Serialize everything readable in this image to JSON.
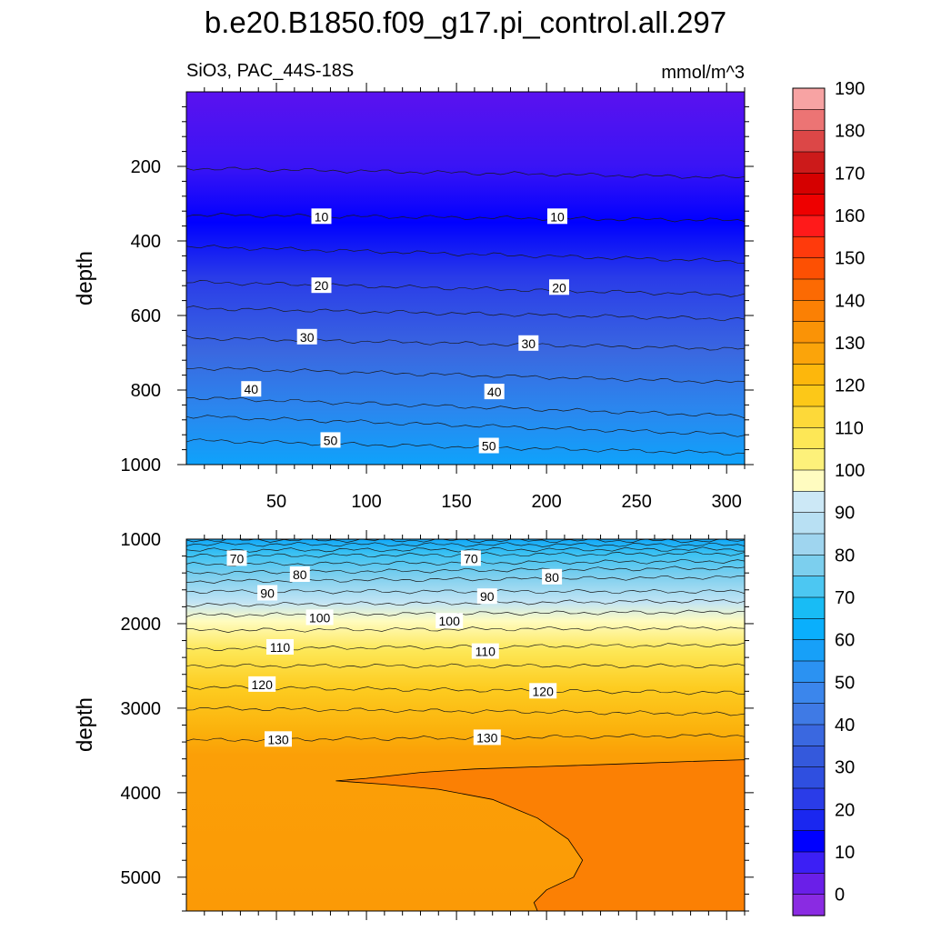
{
  "title": "b.e20.B1850.f09_g17.pi_control.all.297",
  "subtitle_left": "SiO3, PAC_44S-18S",
  "subtitle_right": "mmol/m^3",
  "chart_data": [
    {
      "type": "heatmap",
      "panel": "upper",
      "ylabel": "depth",
      "xlabel": "",
      "xlim": [
        0,
        310
      ],
      "ylim": [
        0,
        1000
      ],
      "y_inverted": true,
      "x_ticks": [
        50,
        100,
        150,
        200,
        250,
        300
      ],
      "y_ticks": [
        200,
        400,
        600,
        800,
        1000
      ],
      "contour_levels": [
        0,
        5,
        10,
        15,
        20,
        25,
        30,
        35,
        40,
        45,
        50
      ],
      "contour_depths_left": [
        205,
        330,
        415,
        510,
        580,
        660,
        740,
        820,
        870,
        935
      ],
      "contour_depths_right": [
        230,
        345,
        455,
        545,
        610,
        690,
        780,
        870,
        920,
        970
      ],
      "contour_labels": [
        {
          "text": "10",
          "x": 75,
          "y": 335
        },
        {
          "text": "10",
          "x": 206,
          "y": 335
        },
        {
          "text": "20",
          "x": 75,
          "y": 520
        },
        {
          "text": "20",
          "x": 207,
          "y": 525
        },
        {
          "text": "30",
          "x": 67,
          "y": 658
        },
        {
          "text": "30",
          "x": 190,
          "y": 675
        },
        {
          "text": "40",
          "x": 36,
          "y": 798
        },
        {
          "text": "40",
          "x": 171,
          "y": 805
        },
        {
          "text": "50",
          "x": 80,
          "y": 935
        },
        {
          "text": "50",
          "x": 168,
          "y": 950
        }
      ]
    },
    {
      "type": "heatmap",
      "panel": "lower",
      "ylabel": "depth",
      "xlabel": "",
      "xlim": [
        0,
        310
      ],
      "ylim": [
        1000,
        5400
      ],
      "y_inverted": true,
      "x_ticks": [
        50,
        100,
        150,
        200,
        250,
        300
      ],
      "y_ticks": [
        1000,
        2000,
        3000,
        4000,
        5000
      ],
      "contour_levels": [
        55,
        60,
        65,
        70,
        75,
        80,
        85,
        90,
        95,
        100,
        105,
        110,
        115,
        120,
        125,
        130
      ],
      "contour_depths_left": [
        1010,
        1060,
        1130,
        1200,
        1300,
        1400,
        1500,
        1620,
        1780,
        1900,
        2080,
        2300,
        2500,
        2750,
        3000,
        3380
      ],
      "contour_depths_right": [
        1020,
        1070,
        1120,
        1170,
        1260,
        1340,
        1450,
        1620,
        1730,
        1860,
        2050,
        2250,
        2500,
        2820,
        3070,
        3320
      ],
      "contour_labels": [
        {
          "text": "70",
          "x": 28,
          "y": 1230
        },
        {
          "text": "80",
          "x": 63,
          "y": 1420
        },
        {
          "text": "90",
          "x": 45,
          "y": 1640
        },
        {
          "text": "100",
          "x": 74,
          "y": 1930
        },
        {
          "text": "110",
          "x": 52,
          "y": 2280
        },
        {
          "text": "120",
          "x": 42,
          "y": 2720
        },
        {
          "text": "130",
          "x": 51,
          "y": 3370
        },
        {
          "text": "70",
          "x": 158,
          "y": 1230
        },
        {
          "text": "80",
          "x": 203,
          "y": 1450
        },
        {
          "text": "90",
          "x": 167,
          "y": 1680
        },
        {
          "text": "100",
          "x": 146,
          "y": 1970
        },
        {
          "text": "110",
          "x": 166,
          "y": 2330
        },
        {
          "text": "120",
          "x": 198,
          "y": 2800
        },
        {
          "text": "130",
          "x": 167,
          "y": 3350
        }
      ],
      "region_140": {
        "boundary_x": [
          83,
          100,
          130,
          160,
          195,
          215,
          220,
          215,
          195,
          195,
          310,
          310
        ],
        "boundary_y": [
          3850,
          3840,
          3720,
          3680,
          3650,
          3640,
          3620,
          3600,
          3590,
          3590,
          3590,
          3590
        ]
      }
    }
  ],
  "colorbar": {
    "levels": [
      "0",
      "10",
      "20",
      "30",
      "40",
      "50",
      "60",
      "70",
      "80",
      "90",
      "100",
      "110",
      "120",
      "130",
      "140",
      "150",
      "160",
      "170",
      "180",
      "190"
    ],
    "colors": [
      "#8a2be2",
      "#6a1fe8",
      "#3c1ff5",
      "#0000ff",
      "#1a27f0",
      "#2a3ce8",
      "#2f4fe0",
      "#3459dc",
      "#3a68e0",
      "#3f7ae5",
      "#3b86ec",
      "#2b92f2",
      "#17a0f8",
      "#0aaffc",
      "#18bcf5",
      "#4cc7f2",
      "#7ccfee",
      "#9fd5ef",
      "#b8e0f3",
      "#cce8f6",
      "#fffcc0",
      "#fdf17a",
      "#fde756",
      "#fdd939",
      "#fcc818",
      "#fdb70c",
      "#fba40a",
      "#fa9306",
      "#fb8004",
      "#fc6a03",
      "#fd5003",
      "#ff3a0c",
      "#ff1a1a",
      "#ee0000",
      "#d50000",
      "#cc1a1a",
      "#dc4747",
      "#ec7474",
      "#f7a3a3"
    ]
  }
}
